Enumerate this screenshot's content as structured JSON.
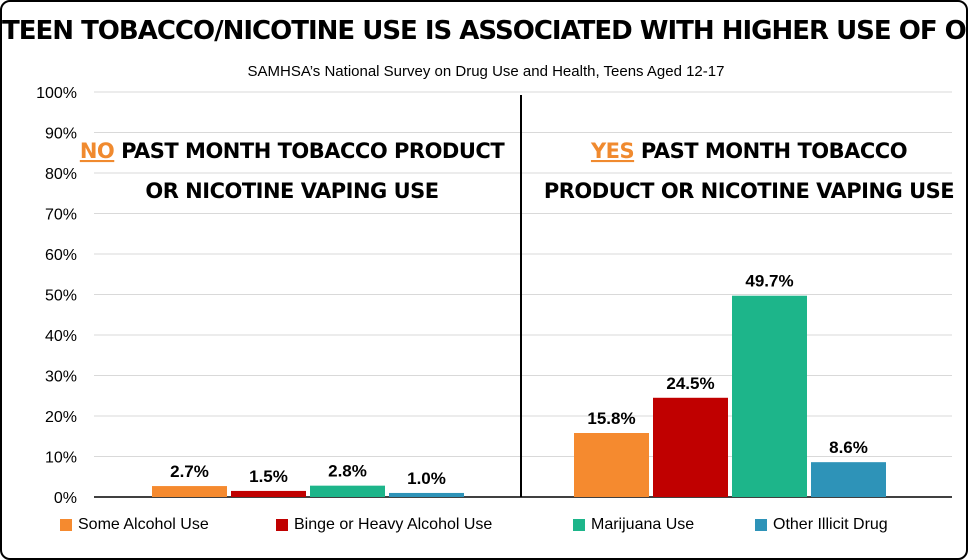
{
  "title": "TEEN TOBACCO/NICOTINE USE IS ASSOCIATED WITH HIGHER USE OF OTHER DRUGS",
  "subtitle": "SAMHSA’s National Survey on Drug Use and Health, Teens Aged 12-17",
  "chart_data": {
    "type": "bar",
    "ylim": [
      0,
      100
    ],
    "y_ticks": [
      "0%",
      "10%",
      "20%",
      "30%",
      "40%",
      "50%",
      "60%",
      "70%",
      "80%",
      "90%",
      "100%"
    ],
    "grid": true,
    "legend_position": "bottom",
    "groups": [
      {
        "key": "NO",
        "title_line1": "PAST MONTH TOBACCO PRODUCT",
        "title_line2": "OR NICOTINE VAPING USE",
        "values": [
          2.7,
          1.5,
          2.8,
          1.0
        ],
        "labels": [
          "2.7%",
          "1.5%",
          "2.8%",
          "1.0%"
        ]
      },
      {
        "key": "YES",
        "title_line1": "PAST MONTH TOBACCO",
        "title_line2": "PRODUCT OR NICOTINE VAPING USE",
        "values": [
          15.8,
          24.5,
          49.7,
          8.6
        ],
        "labels": [
          "15.8%",
          "24.5%",
          "49.7%",
          "8.6%"
        ]
      }
    ],
    "series": [
      {
        "name": "Some Alcohol Use",
        "color": "#F58A2F"
      },
      {
        "name": "Binge or Heavy Alcohol Use",
        "color": "#C00000"
      },
      {
        "name": "Marijuana Use",
        "color": "#1DB58A"
      },
      {
        "name": "Other Illicit Drug",
        "color": "#2E93B8"
      }
    ]
  }
}
